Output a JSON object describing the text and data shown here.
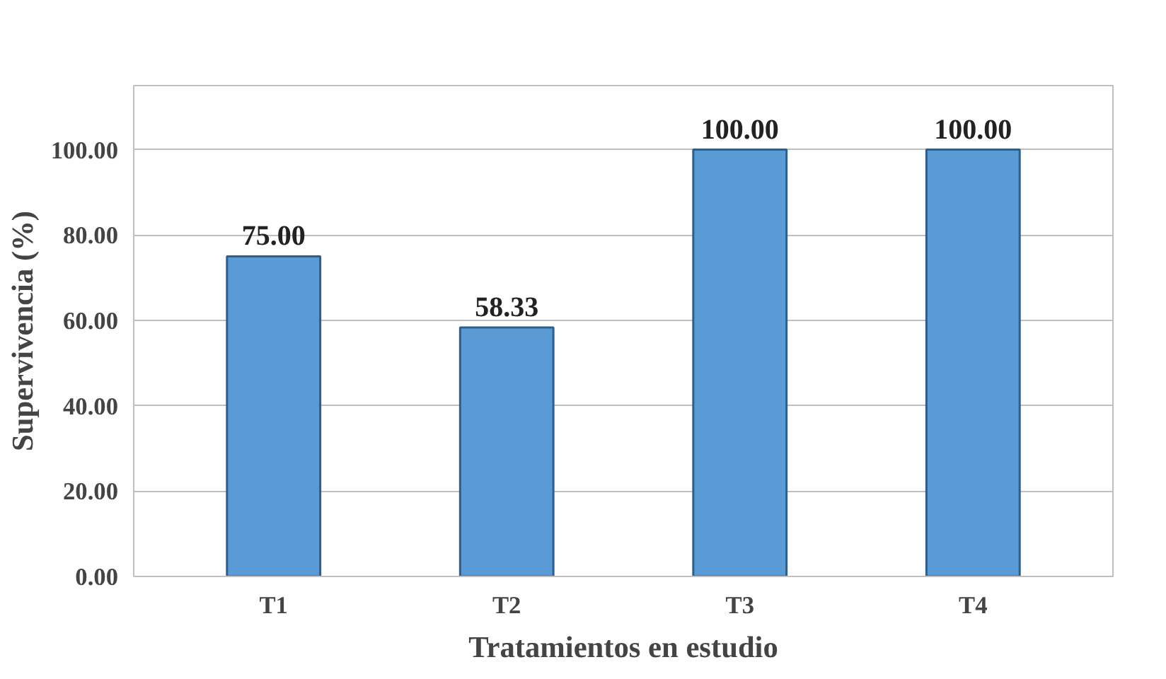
{
  "chart_data": {
    "type": "bar",
    "xlabel": "Tratamientos en estudio",
    "ylabel": "Supervivencia (%)",
    "categories": [
      "T1",
      "T2",
      "T3",
      "T4"
    ],
    "values": [
      75,
      58.33,
      100,
      100
    ],
    "value_labels": [
      "75.00",
      "58.33",
      "100.00",
      "100.00"
    ],
    "color": "#5b9bd5",
    "ylim": [
      0,
      115
    ],
    "yticks": [
      {
        "value": 0,
        "label": "0.00"
      },
      {
        "value": 20,
        "label": "20.00"
      },
      {
        "value": 40,
        "label": "40.00"
      },
      {
        "value": 60,
        "label": "60.00"
      },
      {
        "value": 80,
        "label": "80.00"
      },
      {
        "value": 100,
        "label": "100.00"
      }
    ],
    "grid": "y"
  }
}
